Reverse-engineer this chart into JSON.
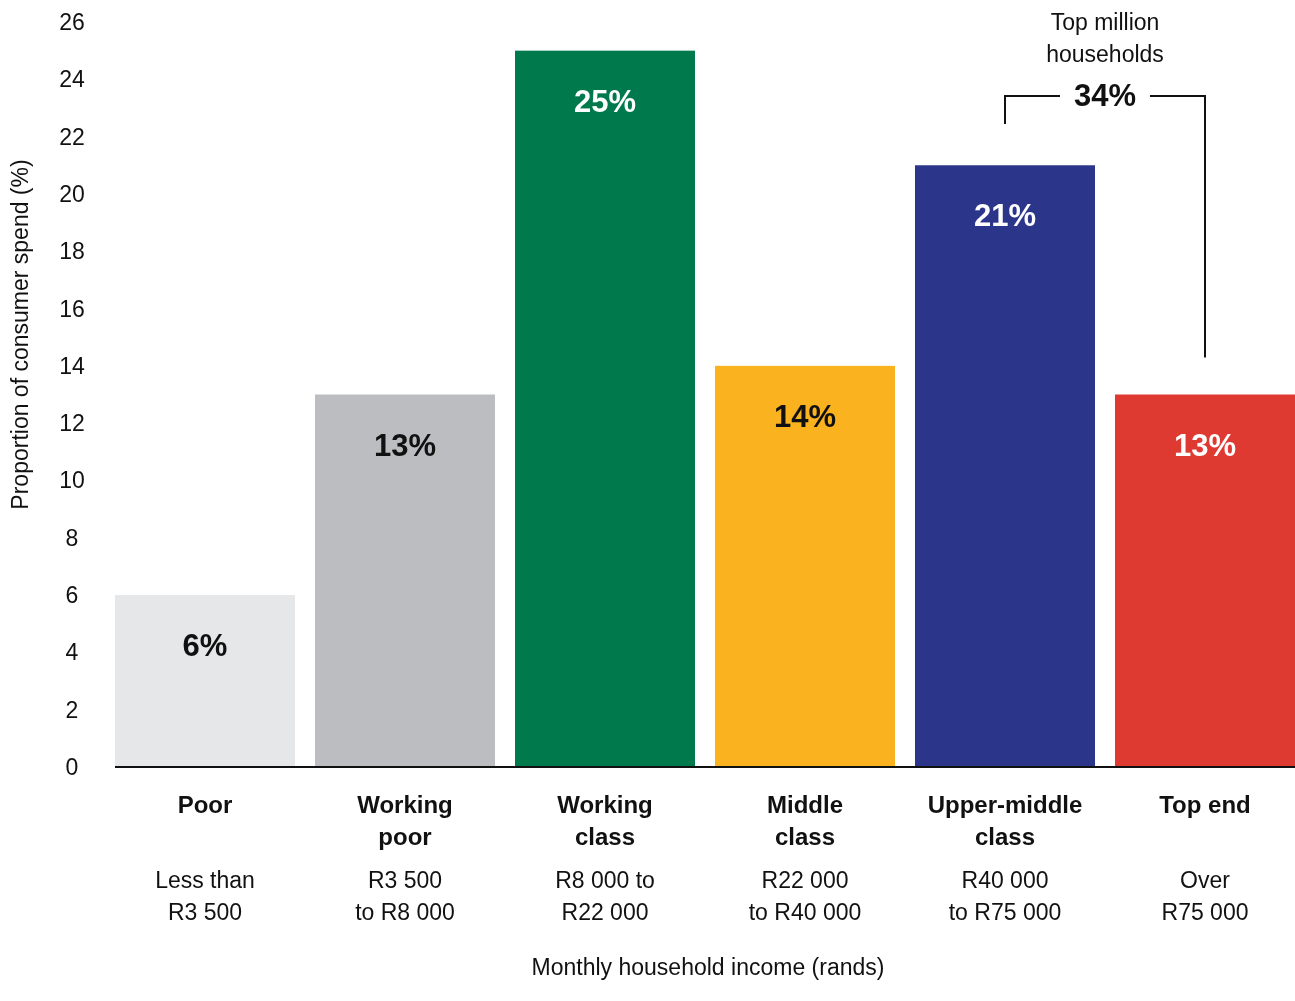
{
  "chart_data": {
    "type": "bar",
    "categories": [
      "Poor",
      "Working poor",
      "Working class",
      "Middle class",
      "Upper-middle class",
      "Top end"
    ],
    "values": [
      6,
      13,
      25,
      14,
      21,
      13
    ],
    "colors": [
      "#e6e7e8",
      "#bcbdc0",
      "#00794c",
      "#fab31e",
      "#2b3589",
      "#de3a31"
    ],
    "value_labels": [
      "6%",
      "13%",
      "25%",
      "14%",
      "21%",
      "13%"
    ],
    "ylim": [
      0,
      26
    ],
    "yticks": [
      0,
      2,
      4,
      6,
      8,
      10,
      12,
      14,
      16,
      18,
      20,
      22,
      24,
      26
    ],
    "ylabel": "Proportion of consumer spend (%)",
    "xlabel": "Monthly household income (rands)",
    "grid": false,
    "annotations": [
      "Less than R3 500",
      "R3 500 to R8 000",
      "R8 000 to R22 000",
      "R22 000 to R40 000",
      "R40 000 to R75 000",
      "Over R75 000",
      "Top million households",
      "34%"
    ]
  }
}
